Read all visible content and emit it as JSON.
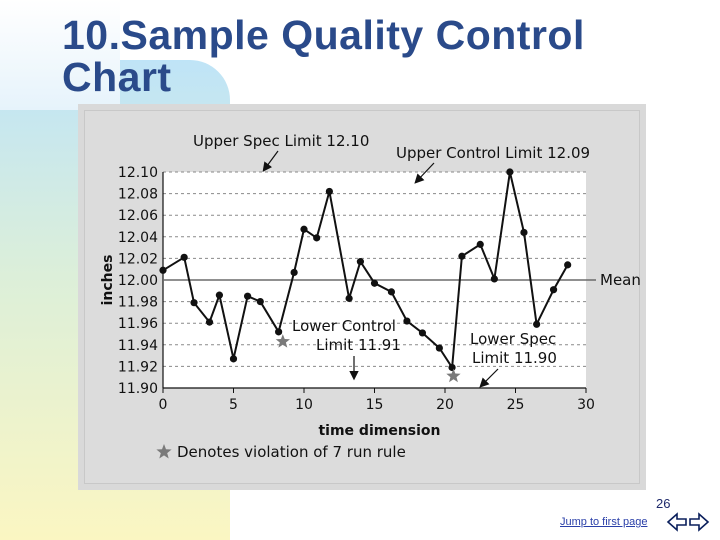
{
  "slide": {
    "title": "10.Sample Quality Control Chart",
    "page_number": "26",
    "jump_link": "Jump to first page",
    "nav": {
      "prev_icon": "arrow-left-icon",
      "next_icon": "arrow-right-icon"
    },
    "colors": {
      "title": "#2a4a8a",
      "accent": "#2a3fa8"
    }
  },
  "chart_data": {
    "type": "line",
    "xlabel": "time dimension",
    "ylabel": "inches",
    "xlim": [
      0,
      30
    ],
    "ylim": [
      11.9,
      12.1
    ],
    "x_ticks": [
      0,
      5,
      10,
      15,
      20,
      25,
      30
    ],
    "x_tick_labels": [
      "0",
      "5",
      "10",
      "15",
      "20",
      "25",
      "30"
    ],
    "y_ticks": [
      12.1,
      12.08,
      12.06,
      12.04,
      12.02,
      12.0,
      11.98,
      11.96,
      11.94,
      11.92,
      11.9
    ],
    "y_tick_labels": [
      "12.10",
      "12.08",
      "12.06",
      "12.04",
      "12.02",
      "12.00",
      "11.98",
      "11.96",
      "11.94",
      "11.92",
      "11.90"
    ],
    "grid": "dashed horizontal at ticks",
    "series": [
      {
        "x": [
          0,
          1.5,
          2.2,
          3.3,
          4,
          5,
          6,
          6.9,
          8.2,
          9.3,
          10,
          10.9,
          11.8,
          13.2,
          14,
          15,
          16.2,
          17.3,
          18.4,
          19.6,
          20.5,
          21.2,
          22.5,
          23.5,
          24.6,
          25.6,
          26.5,
          27.7,
          28.7
        ],
        "y": [
          12.009,
          12.021,
          11.979,
          11.961,
          11.986,
          11.927,
          11.985,
          11.98,
          11.952,
          12.007,
          12.047,
          12.039,
          12.082,
          11.983,
          12.017,
          11.997,
          11.989,
          11.962,
          11.951,
          11.937,
          11.919,
          12.022,
          12.033,
          12.001,
          12.1,
          12.044,
          11.959,
          11.991,
          12.014
        ]
      }
    ],
    "reference_lines": [
      {
        "label": "Mean",
        "y": 12.0
      }
    ],
    "annotations": [
      {
        "text_lines": [
          "Upper Spec Limit 12.10"
        ]
      },
      {
        "text_lines": [
          "Upper Control Limit 12.09"
        ]
      },
      {
        "text_lines": [
          "Lower Control",
          "Limit 11.91"
        ]
      },
      {
        "text_lines": [
          "Lower Spec",
          "Limit 11.90"
        ]
      }
    ],
    "violations": [
      {
        "x": 8.5,
        "y": 11.943
      },
      {
        "x": 20.6,
        "y": 11.911
      }
    ],
    "footnote": "Denotes violation of 7 run rule"
  }
}
